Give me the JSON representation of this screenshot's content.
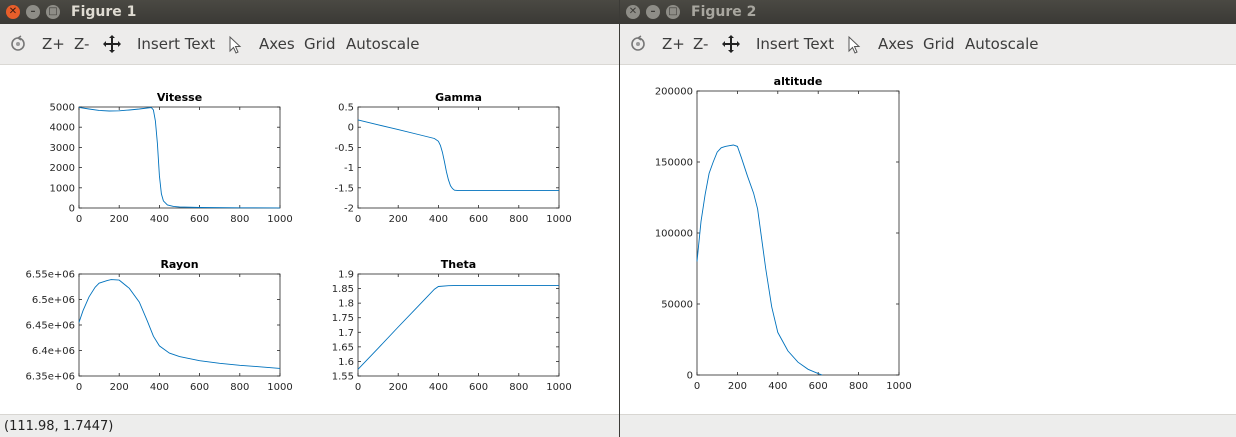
{
  "figure1": {
    "window_title": "Figure 1",
    "toolbar": {
      "zoom_in": "Z+",
      "zoom_out": "Z-",
      "insert_text": "Insert Text",
      "axes": "Axes",
      "grid": "Grid",
      "autoscale": "Autoscale"
    },
    "status": "(111.98, 1.7447)"
  },
  "figure2": {
    "window_title": "Figure 2",
    "toolbar": {
      "zoom_in": "Z+",
      "zoom_out": "Z-",
      "insert_text": "Insert Text",
      "axes": "Axes",
      "grid": "Grid",
      "autoscale": "Autoscale"
    },
    "status": ""
  },
  "colors": {
    "line": "#0072bd",
    "title_bar": "#3c3b37",
    "close_button": "#e85e2a"
  },
  "chart_data": [
    {
      "id": "vitesse",
      "type": "line",
      "title": "Vitesse",
      "xlim": [
        0,
        1000
      ],
      "ylim": [
        0,
        5000
      ],
      "xticks": [
        0,
        200,
        400,
        600,
        800,
        1000
      ],
      "xtick_labels": [
        "0",
        "200",
        "400",
        "600",
        "800",
        "1000"
      ],
      "yticks": [
        0,
        1000,
        2000,
        3000,
        4000,
        5000
      ],
      "ytick_labels": [
        "0",
        "1000",
        "2000",
        "3000",
        "4000",
        "5000"
      ],
      "x": [
        0,
        50,
        100,
        150,
        200,
        250,
        300,
        340,
        360,
        370,
        380,
        390,
        400,
        410,
        420,
        440,
        470,
        500,
        600,
        800,
        1000
      ],
      "y": [
        4980,
        4900,
        4830,
        4800,
        4810,
        4850,
        4900,
        4950,
        4970,
        4850,
        4300,
        3200,
        1600,
        700,
        350,
        150,
        80,
        50,
        25,
        10,
        5
      ]
    },
    {
      "id": "gamma",
      "type": "line",
      "title": "Gamma",
      "xlim": [
        0,
        1000
      ],
      "ylim": [
        -2,
        0.5
      ],
      "xticks": [
        0,
        200,
        400,
        600,
        800,
        1000
      ],
      "xtick_labels": [
        "0",
        "200",
        "400",
        "600",
        "800",
        "1000"
      ],
      "yticks": [
        -2,
        -1.5,
        -1,
        -0.5,
        0,
        0.5
      ],
      "ytick_labels": [
        "-2",
        "-1.5",
        "-1",
        "-0.5",
        "0",
        "0.5"
      ],
      "x": [
        0,
        100,
        200,
        300,
        380,
        400,
        410,
        420,
        430,
        440,
        450,
        460,
        470,
        480,
        500,
        550,
        600,
        800,
        1000
      ],
      "y": [
        0.18,
        0.06,
        -0.06,
        -0.18,
        -0.28,
        -0.35,
        -0.45,
        -0.62,
        -0.85,
        -1.1,
        -1.3,
        -1.45,
        -1.52,
        -1.56,
        -1.57,
        -1.57,
        -1.57,
        -1.57,
        -1.57
      ]
    },
    {
      "id": "rayon",
      "type": "line",
      "title": "Rayon",
      "xlim": [
        0,
        1000
      ],
      "ylim": [
        6350000,
        6550000
      ],
      "xticks": [
        0,
        200,
        400,
        600,
        800,
        1000
      ],
      "xtick_labels": [
        "0",
        "200",
        "400",
        "600",
        "800",
        "1000"
      ],
      "yticks": [
        6350000,
        6400000,
        6450000,
        6500000,
        6550000
      ],
      "ytick_labels": [
        "6.35e+06",
        "6.4e+06",
        "6.45e+06",
        "6.5e+06",
        "6.55e+06"
      ],
      "x": [
        0,
        20,
        50,
        80,
        100,
        140,
        160,
        200,
        250,
        300,
        340,
        370,
        400,
        450,
        500,
        600,
        700,
        800,
        900,
        1000
      ],
      "y": [
        6455000,
        6478000,
        6505000,
        6524000,
        6532000,
        6537000,
        6539000,
        6538000,
        6522000,
        6495000,
        6458000,
        6428000,
        6409000,
        6395000,
        6388000,
        6380000,
        6375000,
        6371000,
        6368000,
        6365000
      ]
    },
    {
      "id": "theta",
      "type": "line",
      "title": "Theta",
      "xlim": [
        0,
        1000
      ],
      "ylim": [
        1.55,
        1.9
      ],
      "xticks": [
        0,
        200,
        400,
        600,
        800,
        1000
      ],
      "xtick_labels": [
        "0",
        "200",
        "400",
        "600",
        "800",
        "1000"
      ],
      "yticks": [
        1.55,
        1.6,
        1.65,
        1.7,
        1.75,
        1.8,
        1.85,
        1.9
      ],
      "ytick_labels": [
        "1.55",
        "1.6",
        "1.65",
        "1.7",
        "1.75",
        "1.8",
        "1.85",
        "1.9"
      ],
      "x": [
        0,
        100,
        200,
        300,
        380,
        400,
        450,
        500,
        600,
        800,
        1000
      ],
      "y": [
        1.573,
        1.645,
        1.718,
        1.79,
        1.848,
        1.857,
        1.86,
        1.861,
        1.861,
        1.861,
        1.861
      ]
    },
    {
      "id": "altitude",
      "type": "line",
      "title": "altitude",
      "xlim": [
        0,
        1000
      ],
      "ylim": [
        0,
        200000
      ],
      "xticks": [
        0,
        200,
        400,
        600,
        800,
        1000
      ],
      "xtick_labels": [
        "0",
        "200",
        "400",
        "600",
        "800",
        "1000"
      ],
      "yticks": [
        0,
        50000,
        100000,
        150000,
        200000
      ],
      "ytick_labels": [
        "0",
        "50000",
        "100000",
        "150000",
        "200000"
      ],
      "x": [
        0,
        20,
        40,
        60,
        80,
        100,
        120,
        140,
        160,
        180,
        200,
        220,
        250,
        280,
        300,
        340,
        370,
        400,
        450,
        500,
        550,
        600,
        620
      ],
      "y": [
        80000,
        108000,
        127000,
        142000,
        150000,
        157000,
        160000,
        161000,
        161500,
        162000,
        161000,
        153000,
        140000,
        128000,
        117000,
        75000,
        48000,
        30000,
        17000,
        9000,
        4000,
        1000,
        0
      ]
    }
  ]
}
